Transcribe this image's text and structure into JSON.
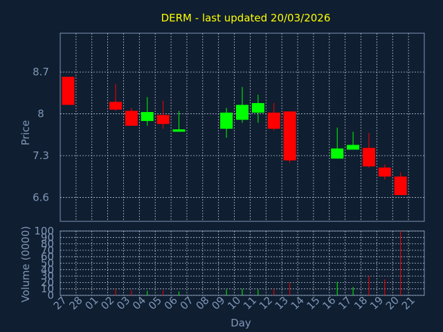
{
  "chart_data": {
    "type": "candlestick",
    "title": "DERM - last updated 20/03/2026",
    "xlabel": "Day",
    "ylabel_price": "Price",
    "ylabel_volume": "Volume (0000)",
    "price_ticks": [
      "8.7",
      "8",
      "7.3",
      "6.6"
    ],
    "price_ylim": [
      6.2,
      9.35
    ],
    "volume_ticks": [
      "0",
      "10",
      "20",
      "30",
      "40",
      "50",
      "60",
      "70",
      "80",
      "90",
      "100"
    ],
    "volume_ylim": [
      0,
      100
    ],
    "x_tick_labels": [
      "27",
      "28",
      "01",
      "02",
      "03",
      "04",
      "05",
      "06",
      "07",
      "08",
      "09",
      "10",
      "11",
      "12",
      "13",
      "14",
      "15",
      "16",
      "17",
      "18",
      "19",
      "20",
      "21"
    ],
    "grid": true,
    "up_color": "#00ff00",
    "down_color": "#ff0000",
    "candles": [
      {
        "x": "27",
        "open": 8.62,
        "high": 8.62,
        "low": 8.15,
        "close": 8.15,
        "volume": 0
      },
      {
        "x": "02",
        "open": 8.2,
        "high": 8.5,
        "low": 8.05,
        "close": 8.07,
        "volume": 10
      },
      {
        "x": "03",
        "open": 8.05,
        "high": 8.1,
        "low": 7.8,
        "close": 7.8,
        "volume": 8
      },
      {
        "x": "04",
        "open": 7.88,
        "high": 8.28,
        "low": 7.8,
        "close": 8.03,
        "volume": 7
      },
      {
        "x": "05",
        "open": 7.98,
        "high": 8.22,
        "low": 7.75,
        "close": 7.83,
        "volume": 8
      },
      {
        "x": "06",
        "open": 7.7,
        "high": 8.05,
        "low": 7.7,
        "close": 7.74,
        "volume": 6
      },
      {
        "x": "09",
        "open": 7.75,
        "high": 8.1,
        "low": 7.6,
        "close": 8.02,
        "volume": 9
      },
      {
        "x": "10",
        "open": 7.9,
        "high": 8.45,
        "low": 7.85,
        "close": 8.15,
        "volume": 10
      },
      {
        "x": "11",
        "open": 8.02,
        "high": 8.32,
        "low": 7.85,
        "close": 8.18,
        "volume": 9
      },
      {
        "x": "12",
        "open": 8.02,
        "high": 8.18,
        "low": 7.72,
        "close": 7.75,
        "volume": 10
      },
      {
        "x": "13",
        "open": 8.04,
        "high": 8.04,
        "low": 7.18,
        "close": 7.22,
        "volume": 20
      },
      {
        "x": "16",
        "open": 7.25,
        "high": 7.77,
        "low": 7.25,
        "close": 7.42,
        "volume": 21
      },
      {
        "x": "17",
        "open": 7.4,
        "high": 7.7,
        "low": 7.4,
        "close": 7.48,
        "volume": 13
      },
      {
        "x": "18",
        "open": 7.43,
        "high": 7.68,
        "low": 7.1,
        "close": 7.12,
        "volume": 30
      },
      {
        "x": "19",
        "open": 7.1,
        "high": 7.15,
        "low": 6.9,
        "close": 6.95,
        "volume": 25
      },
      {
        "x": "20",
        "open": 6.95,
        "high": 7.02,
        "low": 6.64,
        "close": 6.64,
        "volume": 100
      }
    ]
  }
}
